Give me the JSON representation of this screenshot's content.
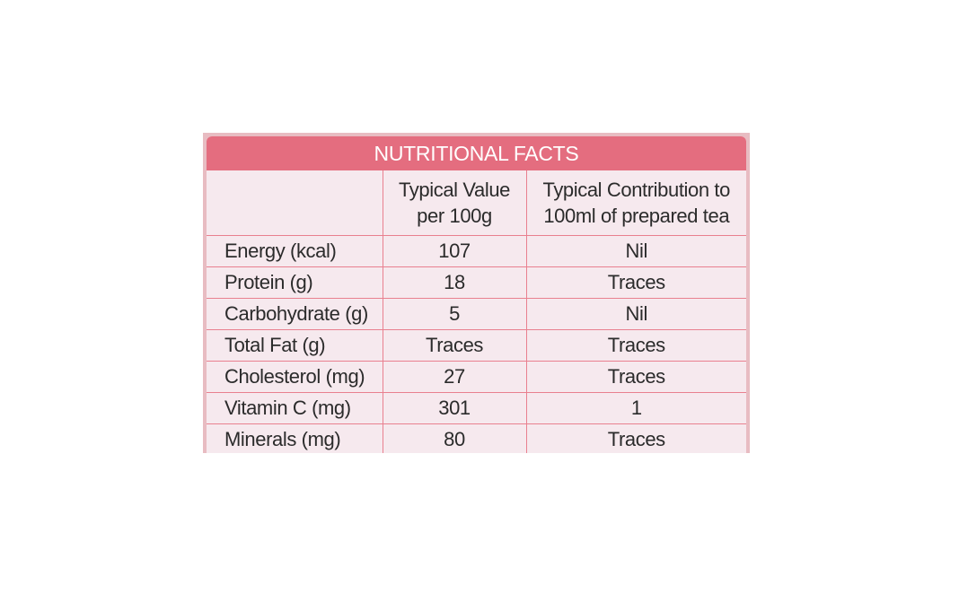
{
  "title": "NUTRITIONAL FACTS",
  "columns": {
    "nutrient": "",
    "per_100g": [
      "Typical Value",
      "per 100g"
    ],
    "per_100ml": [
      "Typical Contribution to",
      "100ml of prepared tea"
    ]
  },
  "rows": [
    {
      "nutrient": "Energy (kcal)",
      "per_100g": "107",
      "per_100ml": "Nil"
    },
    {
      "nutrient": "Protein (g)",
      "per_100g": "18",
      "per_100ml": "Traces"
    },
    {
      "nutrient": "Carbohydrate (g)",
      "per_100g": "5",
      "per_100ml": "Nil"
    },
    {
      "nutrient": "Total Fat (g)",
      "per_100g": "Traces",
      "per_100ml": "Traces"
    },
    {
      "nutrient": "Cholesterol (mg)",
      "per_100g": "27",
      "per_100ml": "Traces"
    },
    {
      "nutrient": "Vitamin C (mg)",
      "per_100g": "301",
      "per_100ml": "1"
    },
    {
      "nutrient": "Minerals (mg)",
      "per_100g": "80",
      "per_100ml": "Traces"
    }
  ],
  "colors": {
    "header_bar": "#e46d7f",
    "panel_background": "#f6e9ee",
    "grid_lines": "#e9808f",
    "outer_packaging": "#e8bcc2",
    "text": "#2b2b2b"
  }
}
